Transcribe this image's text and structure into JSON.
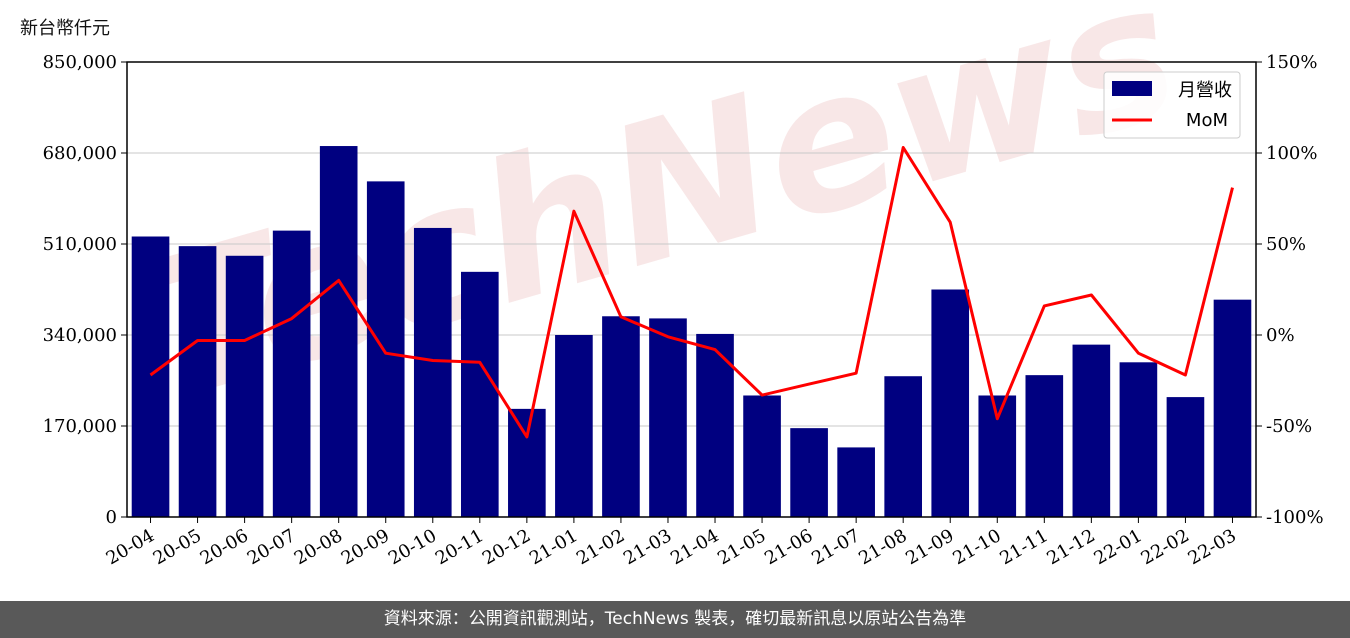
{
  "chart_data": {
    "type": "bar",
    "unit_label": "新台幣仟元",
    "categories": [
      "20-04",
      "20-05",
      "20-06",
      "20-07",
      "20-08",
      "20-09",
      "20-10",
      "20-11",
      "20-12",
      "21-01",
      "21-02",
      "21-03",
      "21-04",
      "21-05",
      "21-06",
      "21-07",
      "21-08",
      "21-09",
      "21-10",
      "21-11",
      "21-12",
      "22-01",
      "22-02",
      "22-03"
    ],
    "series": [
      {
        "name": "月營收",
        "axis": "left",
        "type": "bar",
        "color": "#000080",
        "values": [
          524000,
          506000,
          488000,
          535000,
          693000,
          627000,
          540000,
          458000,
          202000,
          340000,
          375000,
          371000,
          342000,
          227000,
          166000,
          130000,
          263000,
          425000,
          227000,
          265000,
          322000,
          289000,
          224000,
          406000
        ]
      },
      {
        "name": "MoM",
        "axis": "right",
        "type": "line",
        "color": "#ff0000",
        "values": [
          -22,
          -3,
          -3,
          9,
          30,
          -10,
          -14,
          -15,
          -56,
          68,
          10,
          -1,
          -8,
          -33,
          -27,
          -21,
          103,
          62,
          -46,
          16,
          22,
          -10,
          -22,
          81
        ]
      }
    ],
    "y_left": {
      "range": [
        0,
        850000
      ],
      "ticks": [
        "0",
        "170,000",
        "340,000",
        "510,000",
        "680,000",
        "850,000"
      ],
      "tick_values": [
        0,
        170000,
        340000,
        510000,
        680000,
        850000
      ]
    },
    "y_right": {
      "range": [
        -100,
        150
      ],
      "ticks": [
        "-100%",
        "-50%",
        "0%",
        "50%",
        "100%",
        "150%"
      ],
      "tick_values": [
        -100,
        -50,
        0,
        50,
        100,
        150
      ]
    },
    "grid": "horizontal",
    "legend_position": "top-right",
    "watermark": "TechNews"
  },
  "footer": {
    "text": "資料來源：公開資訊觀測站，TechNews 製表，確切最新訊息以原站公告為準"
  }
}
